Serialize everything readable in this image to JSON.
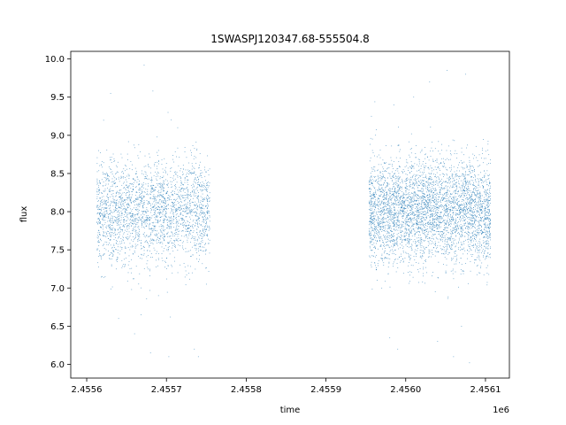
{
  "chart_data": {
    "type": "scatter",
    "title": "1SWASPJ120347.68-555504.8",
    "xlabel": "time",
    "ylabel": "flux",
    "x_offset_label": "1e6",
    "xlim": [
      2455580,
      2456130
    ],
    "ylim": [
      5.82,
      10.1
    ],
    "x_ticks": [
      2455600,
      2455700,
      2455800,
      2455900,
      2456000,
      2456100
    ],
    "x_tick_labels": [
      "2.4556",
      "2.4557",
      "2.4558",
      "2.4559",
      "2.4560",
      "2.4561"
    ],
    "y_ticks": [
      6.0,
      6.5,
      7.0,
      7.5,
      8.0,
      8.5,
      9.0,
      9.5,
      10.0
    ],
    "y_tick_labels": [
      "6.0",
      "6.5",
      "7.0",
      "7.5",
      "8.0",
      "8.5",
      "9.0",
      "9.5",
      "10.0"
    ],
    "grid": false,
    "legend": "none",
    "marker_color": "#1f77b4",
    "series": [
      {
        "observation_windows": [
          [
            2455613,
            2455755
          ],
          [
            2455954,
            2456107
          ]
        ],
        "points_per_window": [
          2600,
          4200
        ],
        "typical_flux_range": [
          7.2,
          8.8
        ],
        "flux_center": 8.0,
        "flux_extremes": [
          6.0,
          9.9
        ],
        "points": [
          [
            2455615,
            8.8
          ],
          [
            2455618,
            7.4
          ],
          [
            2455630,
            9.55
          ],
          [
            2455640,
            6.6
          ],
          [
            2455660,
            6.4
          ],
          [
            2455672,
            9.92
          ],
          [
            2455680,
            6.15
          ],
          [
            2455683,
            9.58
          ],
          [
            2455690,
            6.9
          ],
          [
            2455702,
            9.3
          ],
          [
            2455703,
            6.1
          ],
          [
            2455705,
            6.62
          ],
          [
            2455735,
            6.2
          ],
          [
            2455740,
            6.1
          ],
          [
            2455750,
            7.05
          ],
          [
            2455957,
            9.25
          ],
          [
            2455970,
            7.0
          ],
          [
            2455980,
            6.35
          ],
          [
            2455985,
            9.4
          ],
          [
            2455990,
            6.2
          ],
          [
            2456010,
            9.5
          ],
          [
            2456030,
            9.7
          ],
          [
            2456040,
            6.3
          ],
          [
            2456052,
            9.85
          ],
          [
            2456060,
            6.1
          ],
          [
            2456070,
            6.5
          ],
          [
            2456075,
            9.8
          ],
          [
            2456080,
            6.02
          ],
          [
            2456092,
            7.2
          ],
          [
            2456100,
            7.9
          ]
        ]
      }
    ]
  }
}
